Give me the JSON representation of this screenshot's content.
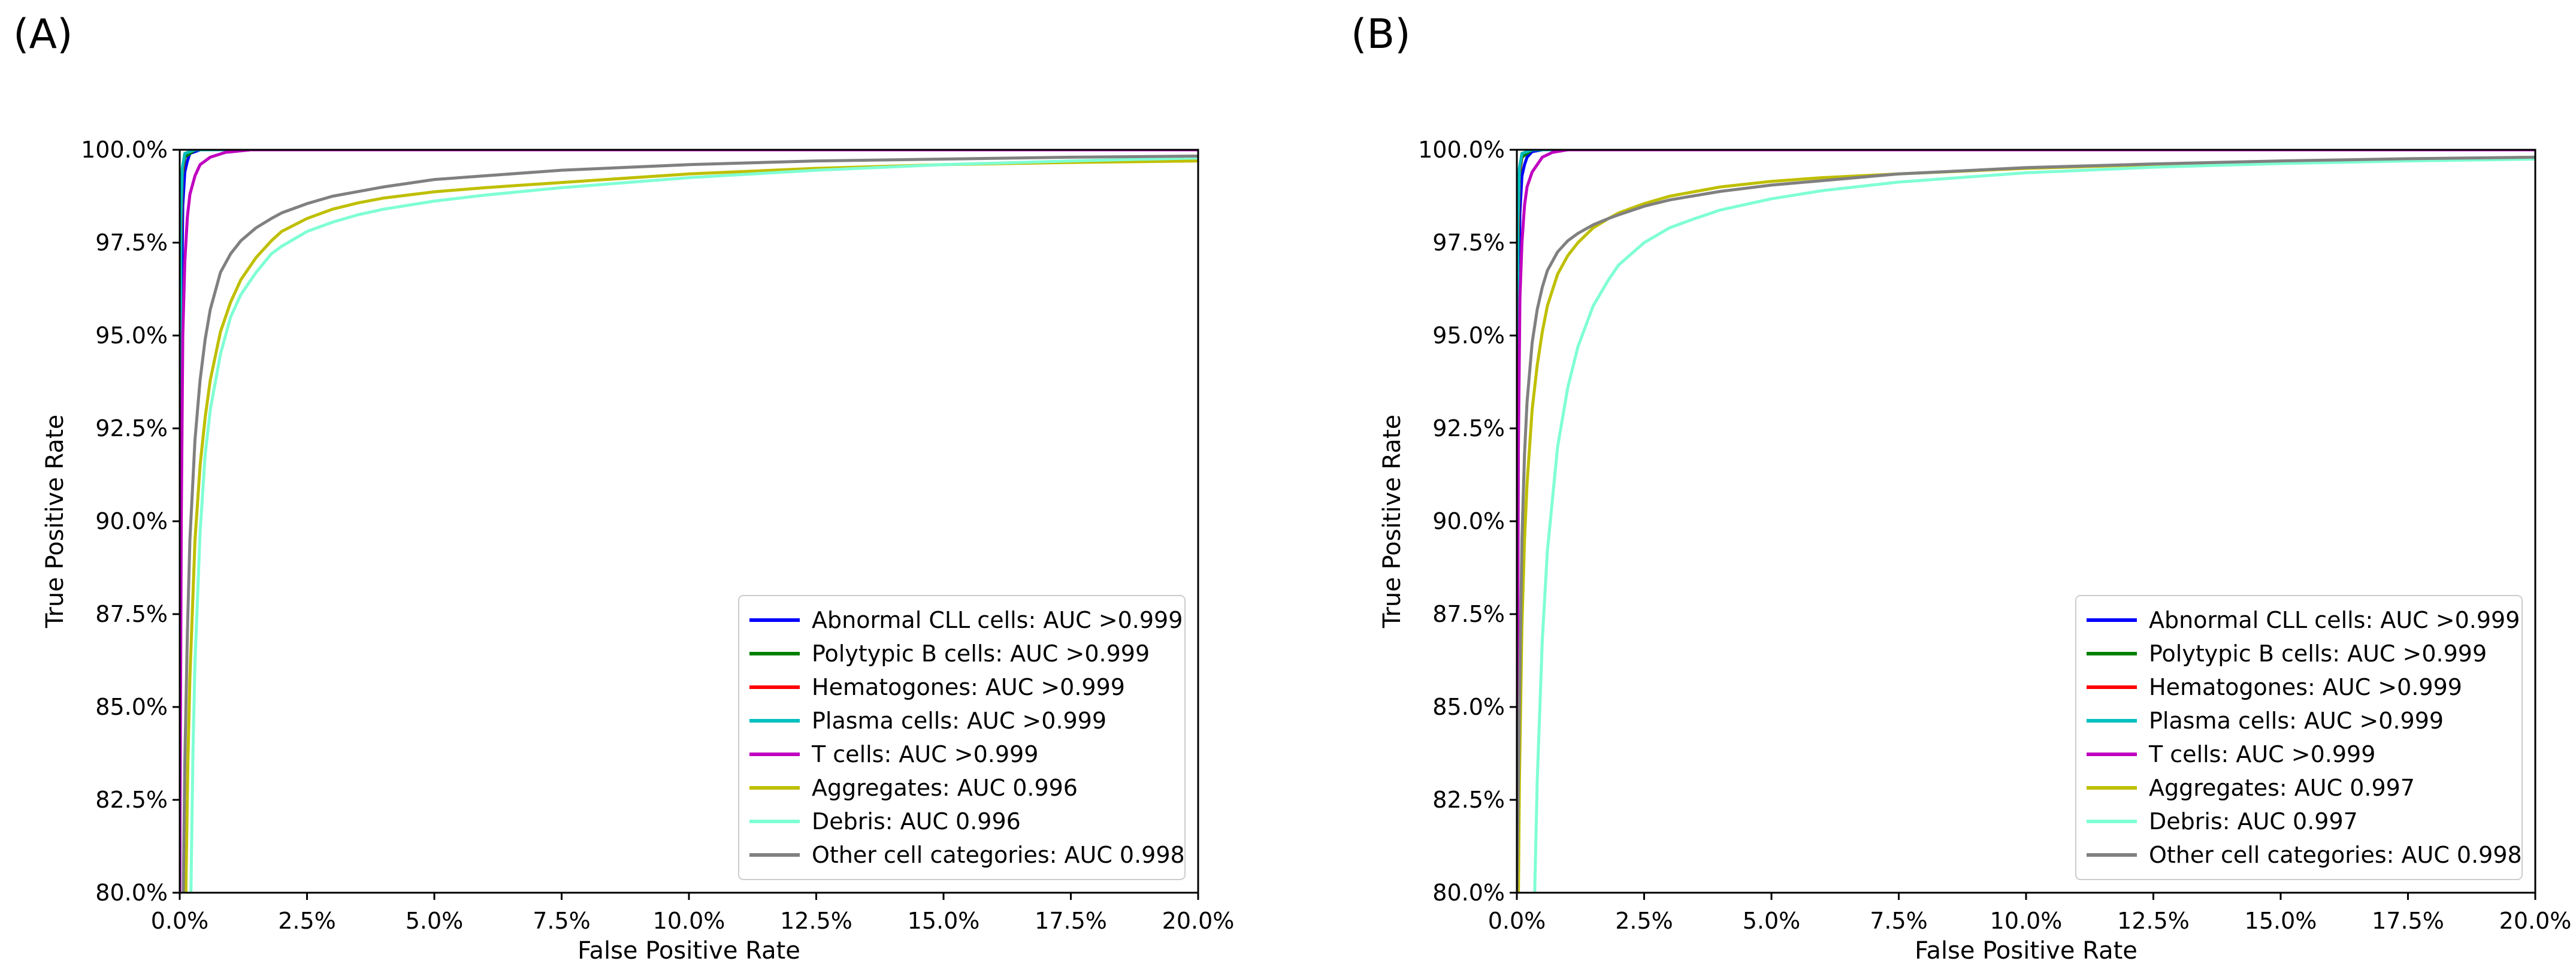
{
  "chart_data": [
    {
      "type": "line",
      "panel_label": "(A)",
      "title": "",
      "xlabel": "False Positive Rate",
      "ylabel": "True Positive Rate",
      "xlim": [
        0,
        0.2
      ],
      "ylim": [
        0.8,
        1.0
      ],
      "x_ticks": [
        "0.0%",
        "2.5%",
        "5.0%",
        "7.5%",
        "10.0%",
        "12.5%",
        "15.0%",
        "17.5%",
        "20.0%"
      ],
      "y_ticks": [
        "80.0%",
        "82.5%",
        "85.0%",
        "87.5%",
        "90.0%",
        "92.5%",
        "95.0%",
        "97.5%",
        "100.0%"
      ],
      "grid": false,
      "legend_position": "lower-right",
      "series": [
        {
          "name": "Abnormal CLL cells: AUC >0.999",
          "color": "#0000ff",
          "x": [
            0,
            0.0003,
            0.0006,
            0.001,
            0.0015,
            0.002,
            0.004,
            0.2
          ],
          "y": [
            0.8,
            0.95,
            0.985,
            0.994,
            0.997,
            0.999,
            1.0,
            1.0
          ]
        },
        {
          "name": "Polytypic B cells: AUC >0.999",
          "color": "#008000",
          "x": [
            0,
            0.0002,
            0.0005,
            0.001,
            0.003,
            0.2
          ],
          "y": [
            0.8,
            0.97,
            0.993,
            0.998,
            1.0,
            1.0
          ]
        },
        {
          "name": "Hematogones: AUC >0.999",
          "color": "#ff0000",
          "x": [
            0,
            0.0002,
            0.0005,
            0.001,
            0.003,
            0.2
          ],
          "y": [
            0.8,
            0.975,
            0.994,
            0.999,
            1.0,
            1.0
          ]
        },
        {
          "name": "Plasma cells: AUC >0.999",
          "color": "#00bfbf",
          "x": [
            0,
            0.0002,
            0.0005,
            0.001,
            0.003,
            0.2
          ],
          "y": [
            0.8,
            0.98,
            0.995,
            0.999,
            1.0,
            1.0
          ]
        },
        {
          "name": "T cells: AUC >0.999",
          "color": "#bf00bf",
          "x": [
            0,
            0.0003,
            0.0006,
            0.001,
            0.0015,
            0.002,
            0.003,
            0.004,
            0.006,
            0.009,
            0.014,
            0.2
          ],
          "y": [
            0.8,
            0.9,
            0.95,
            0.97,
            0.982,
            0.988,
            0.993,
            0.996,
            0.998,
            0.9993,
            1.0,
            1.0
          ]
        },
        {
          "name": "Aggregates: AUC 0.996",
          "color": "#bfbf00",
          "x": [
            0.0012,
            0.0016,
            0.002,
            0.003,
            0.004,
            0.005,
            0.006,
            0.008,
            0.01,
            0.012,
            0.015,
            0.018,
            0.02,
            0.025,
            0.03,
            0.035,
            0.04,
            0.05,
            0.06,
            0.075,
            0.1,
            0.125,
            0.15,
            0.175,
            0.2
          ],
          "y": [
            0.8,
            0.835,
            0.858,
            0.895,
            0.915,
            0.928,
            0.938,
            0.951,
            0.959,
            0.965,
            0.971,
            0.9755,
            0.978,
            0.9815,
            0.984,
            0.9857,
            0.987,
            0.9887,
            0.9898,
            0.9912,
            0.9935,
            0.995,
            0.996,
            0.9966,
            0.997
          ]
        },
        {
          "name": "Debris: AUC 0.996",
          "color": "#7fffd4",
          "x": [
            0.0022,
            0.0026,
            0.003,
            0.004,
            0.005,
            0.006,
            0.008,
            0.01,
            0.012,
            0.015,
            0.018,
            0.02,
            0.025,
            0.03,
            0.035,
            0.04,
            0.05,
            0.06,
            0.075,
            0.1,
            0.125,
            0.15,
            0.175,
            0.2
          ],
          "y": [
            0.8,
            0.838,
            0.862,
            0.897,
            0.918,
            0.93,
            0.945,
            0.955,
            0.961,
            0.967,
            0.972,
            0.974,
            0.978,
            0.9805,
            0.9825,
            0.984,
            0.9862,
            0.9878,
            0.9898,
            0.9925,
            0.9945,
            0.996,
            0.997,
            0.9978
          ]
        },
        {
          "name": "Other cell categories: AUC 0.998",
          "color": "#808080",
          "x": [
            0.0007,
            0.001,
            0.0015,
            0.002,
            0.003,
            0.004,
            0.005,
            0.006,
            0.008,
            0.01,
            0.012,
            0.015,
            0.018,
            0.02,
            0.025,
            0.03,
            0.04,
            0.05,
            0.075,
            0.1,
            0.125,
            0.15,
            0.175,
            0.2
          ],
          "y": [
            0.8,
            0.835,
            0.87,
            0.895,
            0.922,
            0.938,
            0.949,
            0.957,
            0.967,
            0.972,
            0.9755,
            0.979,
            0.9815,
            0.983,
            0.9855,
            0.9875,
            0.99,
            0.992,
            0.9945,
            0.996,
            0.997,
            0.9975,
            0.998,
            0.9983
          ]
        }
      ]
    },
    {
      "type": "line",
      "panel_label": "(B)",
      "title": "",
      "xlabel": "False Positive Rate",
      "ylabel": "True Positive Rate",
      "xlim": [
        0,
        0.2
      ],
      "ylim": [
        0.8,
        1.0
      ],
      "x_ticks": [
        "0.0%",
        "2.5%",
        "5.0%",
        "7.5%",
        "10.0%",
        "12.5%",
        "15.0%",
        "17.5%",
        "20.0%"
      ],
      "y_ticks": [
        "80.0%",
        "82.5%",
        "85.0%",
        "87.5%",
        "90.0%",
        "92.5%",
        "95.0%",
        "97.5%",
        "100.0%"
      ],
      "grid": false,
      "legend_position": "lower-right",
      "series": [
        {
          "name": "Abnormal CLL cells: AUC >0.999",
          "color": "#0000ff",
          "x": [
            0,
            0.0003,
            0.0006,
            0.001,
            0.0015,
            0.002,
            0.003,
            0.005,
            0.2
          ],
          "y": [
            0.8,
            0.95,
            0.983,
            0.993,
            0.996,
            0.998,
            0.9995,
            1.0,
            1.0
          ]
        },
        {
          "name": "Polytypic B cells: AUC >0.999",
          "color": "#008000",
          "x": [
            0,
            0.0002,
            0.0005,
            0.001,
            0.003,
            0.2
          ],
          "y": [
            0.8,
            0.97,
            0.993,
            0.998,
            1.0,
            1.0
          ]
        },
        {
          "name": "Hematogones: AUC >0.999",
          "color": "#ff0000",
          "x": [
            0,
            0.0002,
            0.0005,
            0.001,
            0.003,
            0.2
          ],
          "y": [
            0.8,
            0.975,
            0.994,
            0.999,
            1.0,
            1.0
          ]
        },
        {
          "name": "Plasma cells: AUC >0.999",
          "color": "#00bfbf",
          "x": [
            0,
            0.0002,
            0.0005,
            0.001,
            0.003,
            0.2
          ],
          "y": [
            0.8,
            0.98,
            0.995,
            0.999,
            1.0,
            1.0
          ]
        },
        {
          "name": "T cells: AUC >0.999",
          "color": "#bf00bf",
          "x": [
            0,
            0.0003,
            0.0006,
            0.001,
            0.0015,
            0.002,
            0.003,
            0.004,
            0.005,
            0.007,
            0.01,
            0.2
          ],
          "y": [
            0.8,
            0.92,
            0.96,
            0.975,
            0.985,
            0.99,
            0.994,
            0.996,
            0.998,
            0.9993,
            1.0,
            1.0
          ]
        },
        {
          "name": "Aggregates: AUC 0.997",
          "color": "#bfbf00",
          "x": [
            0.0003,
            0.0005,
            0.001,
            0.0015,
            0.002,
            0.003,
            0.004,
            0.005,
            0.006,
            0.008,
            0.01,
            0.012,
            0.015,
            0.018,
            0.02,
            0.025,
            0.03,
            0.04,
            0.05,
            0.06,
            0.075,
            0.1,
            0.125,
            0.15,
            0.175,
            0.2
          ],
          "y": [
            0.8,
            0.83,
            0.872,
            0.895,
            0.91,
            0.93,
            0.942,
            0.951,
            0.958,
            0.9665,
            0.9715,
            0.975,
            0.979,
            0.9815,
            0.983,
            0.9855,
            0.9875,
            0.99,
            0.9915,
            0.9925,
            0.9935,
            0.995,
            0.996,
            0.9968,
            0.9974,
            0.998
          ]
        },
        {
          "name": "Debris: AUC 0.997",
          "color": "#7fffd4",
          "x": [
            0.0035,
            0.004,
            0.005,
            0.006,
            0.008,
            0.01,
            0.012,
            0.015,
            0.018,
            0.02,
            0.025,
            0.03,
            0.035,
            0.04,
            0.05,
            0.06,
            0.075,
            0.1,
            0.125,
            0.15,
            0.175,
            0.2
          ],
          "y": [
            0.8,
            0.83,
            0.868,
            0.892,
            0.92,
            0.936,
            0.947,
            0.958,
            0.965,
            0.969,
            0.975,
            0.979,
            0.9815,
            0.9838,
            0.9868,
            0.989,
            0.9913,
            0.9938,
            0.9953,
            0.9963,
            0.997,
            0.9975
          ]
        },
        {
          "name": "Other cell categories: AUC 0.998",
          "color": "#808080",
          "x": [
            0,
            0.0005,
            0.001,
            0.0015,
            0.002,
            0.003,
            0.004,
            0.005,
            0.006,
            0.008,
            0.01,
            0.012,
            0.015,
            0.018,
            0.02,
            0.025,
            0.03,
            0.04,
            0.05,
            0.075,
            0.1,
            0.125,
            0.15,
            0.175,
            0.2
          ],
          "y": [
            0.8,
            0.85,
            0.895,
            0.918,
            0.932,
            0.948,
            0.957,
            0.963,
            0.9675,
            0.9725,
            0.9755,
            0.9775,
            0.9798,
            0.9815,
            0.9825,
            0.9848,
            0.9865,
            0.9888,
            0.9905,
            0.9935,
            0.9952,
            0.9962,
            0.997,
            0.9976,
            0.998
          ]
        }
      ]
    }
  ]
}
